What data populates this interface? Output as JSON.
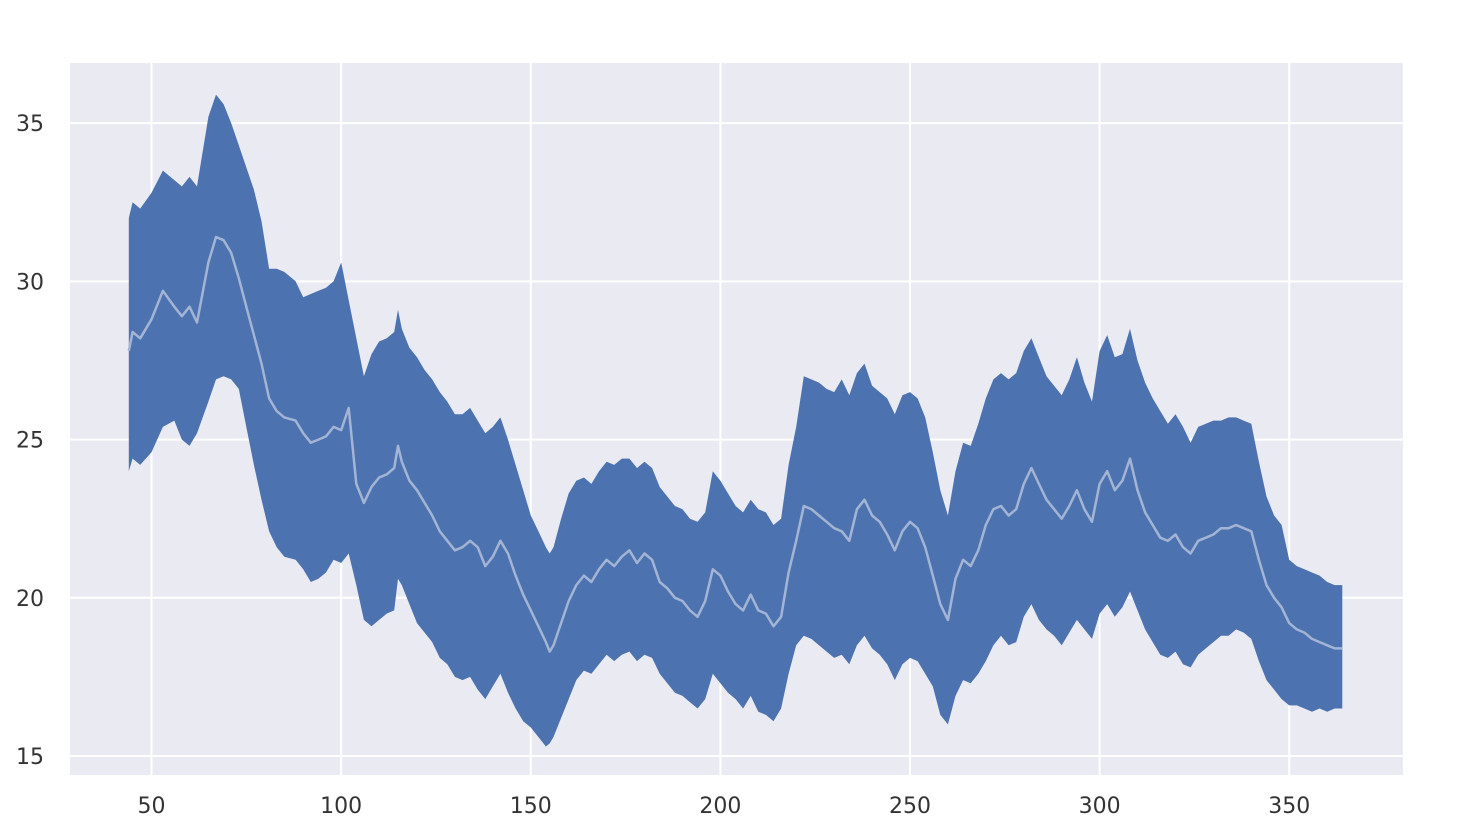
{
  "chart_data": {
    "type": "area",
    "title": "",
    "xlabel": "",
    "ylabel": "",
    "xlim": [
      28.5,
      380
    ],
    "ylim": [
      14.4,
      36.9
    ],
    "grid": true,
    "legend": "none",
    "colors": {
      "background": "#eaeaf2",
      "band": "#4c72b0",
      "line": "#a3b4d4",
      "grid": "#ffffff"
    },
    "x_ticks": [
      50,
      100,
      150,
      200,
      250,
      300,
      350
    ],
    "x_tick_labels": [
      "50",
      "100",
      "150",
      "200",
      "250",
      "300",
      "350"
    ],
    "y_ticks": [
      15,
      20,
      25,
      30,
      35
    ],
    "y_tick_labels": [
      "15",
      "20",
      "25",
      "30",
      "35"
    ],
    "series": [
      {
        "x": [
          44,
          45,
          47,
          50,
          53,
          56,
          58,
          60,
          62,
          65,
          67,
          69,
          71,
          73,
          75,
          77,
          79,
          81,
          83,
          85,
          88,
          90,
          92,
          94,
          96,
          98,
          100,
          102,
          104,
          106,
          108,
          110,
          112,
          114,
          115,
          116,
          118,
          120,
          122,
          124,
          126,
          128,
          130,
          132,
          134,
          136,
          138,
          140,
          142,
          144,
          146,
          148,
          150,
          152,
          154,
          155,
          156,
          158,
          160,
          162,
          164,
          166,
          168,
          170,
          172,
          174,
          176,
          178,
          180,
          182,
          184,
          186,
          188,
          190,
          192,
          194,
          196,
          198,
          200,
          202,
          204,
          206,
          208,
          210,
          212,
          214,
          216,
          218,
          220,
          222,
          224,
          226,
          228,
          230,
          232,
          234,
          236,
          238,
          240,
          242,
          244,
          246,
          248,
          250,
          252,
          254,
          256,
          258,
          260,
          262,
          264,
          266,
          268,
          270,
          272,
          274,
          276,
          278,
          280,
          282,
          284,
          286,
          288,
          290,
          292,
          294,
          296,
          298,
          300,
          302,
          304,
          306,
          308,
          310,
          312,
          314,
          316,
          318,
          320,
          322,
          324,
          326,
          328,
          330,
          332,
          334,
          336,
          338,
          340,
          342,
          344,
          346,
          348,
          350,
          352,
          354,
          356,
          358,
          360,
          362,
          364
        ],
        "mean": [
          27.8,
          28.4,
          28.2,
          28.8,
          29.7,
          29.2,
          28.9,
          29.2,
          28.7,
          30.6,
          31.4,
          31.3,
          30.9,
          30.1,
          29.2,
          28.3,
          27.4,
          26.3,
          25.9,
          25.7,
          25.6,
          25.2,
          24.9,
          25.0,
          25.1,
          25.4,
          25.3,
          26.0,
          23.6,
          23.0,
          23.5,
          23.8,
          23.9,
          24.1,
          24.8,
          24.3,
          23.7,
          23.4,
          23.0,
          22.6,
          22.1,
          21.8,
          21.5,
          21.6,
          21.8,
          21.6,
          21.0,
          21.3,
          21.8,
          21.4,
          20.7,
          20.1,
          19.6,
          19.1,
          18.6,
          18.3,
          18.5,
          19.2,
          19.9,
          20.4,
          20.7,
          20.5,
          20.9,
          21.2,
          21.0,
          21.3,
          21.5,
          21.1,
          21.4,
          21.2,
          20.5,
          20.3,
          20.0,
          19.9,
          19.6,
          19.4,
          19.9,
          20.9,
          20.7,
          20.2,
          19.8,
          19.6,
          20.1,
          19.6,
          19.5,
          19.1,
          19.4,
          20.8,
          21.8,
          22.9,
          22.8,
          22.6,
          22.4,
          22.2,
          22.1,
          21.8,
          22.8,
          23.1,
          22.6,
          22.4,
          22.0,
          21.5,
          22.1,
          22.4,
          22.2,
          21.6,
          20.7,
          19.8,
          19.3,
          20.6,
          21.2,
          21.0,
          21.5,
          22.3,
          22.8,
          22.9,
          22.6,
          22.8,
          23.6,
          24.1,
          23.6,
          23.1,
          22.8,
          22.5,
          22.9,
          23.4,
          22.8,
          22.4,
          23.6,
          24.0,
          23.4,
          23.7,
          24.4,
          23.4,
          22.7,
          22.3,
          21.9,
          21.8,
          22.0,
          21.6,
          21.4,
          21.8,
          21.9,
          22.0,
          22.2,
          22.2,
          22.3,
          22.2,
          22.1,
          21.2,
          20.4,
          20.0,
          19.7,
          19.2,
          19.0,
          18.9,
          18.7,
          18.6,
          18.5,
          18.4,
          18.4
        ],
        "lower": [
          24.0,
          24.4,
          24.2,
          24.6,
          25.4,
          25.6,
          25.0,
          24.8,
          25.2,
          26.2,
          26.9,
          27.0,
          26.9,
          26.6,
          25.4,
          24.2,
          23.1,
          22.1,
          21.6,
          21.3,
          21.2,
          20.9,
          20.5,
          20.6,
          20.8,
          21.2,
          21.1,
          21.4,
          20.4,
          19.3,
          19.1,
          19.3,
          19.5,
          19.6,
          20.6,
          20.4,
          19.8,
          19.2,
          18.9,
          18.6,
          18.1,
          17.9,
          17.5,
          17.4,
          17.5,
          17.1,
          16.8,
          17.2,
          17.6,
          17.0,
          16.5,
          16.1,
          15.9,
          15.6,
          15.3,
          15.4,
          15.6,
          16.2,
          16.8,
          17.4,
          17.7,
          17.6,
          17.9,
          18.2,
          18.0,
          18.2,
          18.3,
          18.0,
          18.2,
          18.1,
          17.6,
          17.3,
          17.0,
          16.9,
          16.7,
          16.5,
          16.8,
          17.6,
          17.3,
          17.0,
          16.8,
          16.5,
          16.9,
          16.4,
          16.3,
          16.1,
          16.5,
          17.6,
          18.5,
          18.8,
          18.7,
          18.5,
          18.3,
          18.1,
          18.2,
          17.9,
          18.5,
          18.8,
          18.4,
          18.2,
          17.9,
          17.4,
          17.9,
          18.1,
          18.0,
          17.6,
          17.2,
          16.3,
          16.0,
          16.9,
          17.4,
          17.3,
          17.6,
          18.0,
          18.5,
          18.8,
          18.5,
          18.6,
          19.4,
          19.8,
          19.3,
          19.0,
          18.8,
          18.5,
          18.9,
          19.3,
          19.0,
          18.7,
          19.5,
          19.8,
          19.4,
          19.7,
          20.2,
          19.6,
          19.0,
          18.6,
          18.2,
          18.1,
          18.3,
          17.9,
          17.8,
          18.2,
          18.4,
          18.6,
          18.8,
          18.8,
          19.0,
          18.9,
          18.7,
          18.0,
          17.4,
          17.1,
          16.8,
          16.6,
          16.6,
          16.5,
          16.4,
          16.5,
          16.4,
          16.5,
          16.5
        ],
        "upper": [
          32.0,
          32.5,
          32.3,
          32.8,
          33.5,
          33.2,
          33.0,
          33.3,
          33.0,
          35.2,
          35.9,
          35.6,
          35.0,
          34.3,
          33.6,
          32.9,
          31.9,
          30.4,
          30.4,
          30.3,
          30.0,
          29.5,
          29.6,
          29.7,
          29.8,
          30.0,
          30.6,
          29.4,
          28.2,
          27.0,
          27.7,
          28.1,
          28.2,
          28.4,
          29.1,
          28.5,
          27.9,
          27.6,
          27.2,
          26.9,
          26.5,
          26.2,
          25.8,
          25.8,
          26.0,
          25.6,
          25.2,
          25.4,
          25.7,
          25.0,
          24.2,
          23.4,
          22.6,
          22.1,
          21.6,
          21.4,
          21.6,
          22.5,
          23.3,
          23.7,
          23.8,
          23.6,
          24.0,
          24.3,
          24.2,
          24.4,
          24.4,
          24.1,
          24.3,
          24.1,
          23.5,
          23.2,
          22.9,
          22.8,
          22.5,
          22.4,
          22.7,
          24.0,
          23.7,
          23.3,
          22.9,
          22.7,
          23.1,
          22.8,
          22.7,
          22.3,
          22.5,
          24.2,
          25.4,
          27.0,
          26.9,
          26.8,
          26.6,
          26.5,
          26.9,
          26.4,
          27.1,
          27.4,
          26.7,
          26.5,
          26.3,
          25.8,
          26.4,
          26.5,
          26.3,
          25.7,
          24.6,
          23.4,
          22.6,
          24.0,
          24.9,
          24.8,
          25.5,
          26.3,
          26.9,
          27.1,
          26.9,
          27.1,
          27.8,
          28.2,
          27.6,
          27.0,
          26.7,
          26.4,
          26.9,
          27.6,
          26.8,
          26.2,
          27.8,
          28.3,
          27.6,
          27.7,
          28.5,
          27.5,
          26.8,
          26.3,
          25.9,
          25.5,
          25.8,
          25.4,
          24.9,
          25.4,
          25.5,
          25.6,
          25.6,
          25.7,
          25.7,
          25.6,
          25.5,
          24.3,
          23.2,
          22.6,
          22.3,
          21.2,
          21.0,
          20.9,
          20.8,
          20.7,
          20.5,
          20.4,
          20.4
        ]
      }
    ]
  }
}
